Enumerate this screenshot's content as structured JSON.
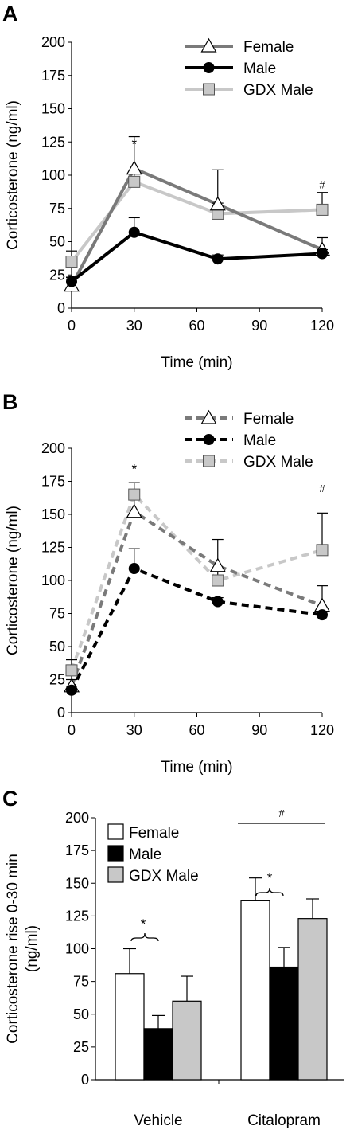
{
  "chart_data": [
    {
      "panel": "A",
      "type": "line",
      "xlabel": "Time (min)",
      "ylabel": "Corticosterone (ng/ml)",
      "x": [
        0,
        30,
        70,
        120
      ],
      "xticks": [
        0,
        30,
        60,
        90,
        120
      ],
      "xlim": [
        0,
        120
      ],
      "ylim": [
        0,
        200
      ],
      "yticks": [
        0,
        25,
        50,
        75,
        100,
        125,
        150,
        175,
        200
      ],
      "line_style": "solid",
      "legend_position": "top-right",
      "series": [
        {
          "name": "Female",
          "values": [
            17,
            105,
            78,
            44
          ],
          "errors": [
            6,
            24,
            26,
            9
          ],
          "marker": "triangle",
          "color": "#7a7a7a"
        },
        {
          "name": "Male",
          "values": [
            20,
            57,
            37,
            41
          ],
          "errors": [
            4,
            11,
            3,
            3
          ],
          "marker": "circle",
          "color": "#000000"
        },
        {
          "name": "GDX Male",
          "values": [
            35,
            95,
            71,
            74
          ],
          "errors": [
            8,
            6,
            8,
            13
          ],
          "marker": "square",
          "color": "#c8c8c8"
        }
      ],
      "annotations": [
        {
          "text": "*",
          "x": 30,
          "y": 120
        },
        {
          "text": "#",
          "x": 120,
          "y": 90
        }
      ]
    },
    {
      "panel": "B",
      "type": "line",
      "xlabel": "Time (min)",
      "ylabel": "Corticosterone (ng/ml)",
      "x": [
        0,
        30,
        70,
        120
      ],
      "xticks": [
        0,
        30,
        60,
        90,
        120
      ],
      "xlim": [
        0,
        120
      ],
      "ylim": [
        0,
        200
      ],
      "yticks": [
        0,
        25,
        50,
        75,
        100,
        125,
        150,
        175,
        200
      ],
      "line_style": "dashed",
      "legend_position": "top-right",
      "series": [
        {
          "name": "Female",
          "values": [
            20,
            152,
            111,
            81
          ],
          "errors": [
            5,
            15,
            20,
            15
          ],
          "marker": "triangle",
          "color": "#7a7a7a"
        },
        {
          "name": "Male",
          "values": [
            17,
            109,
            84,
            74
          ],
          "errors": [
            3,
            15,
            3,
            3
          ],
          "marker": "circle",
          "color": "#000000"
        },
        {
          "name": "GDX Male",
          "values": [
            32,
            165,
            100,
            123
          ],
          "errors": [
            8,
            9,
            8,
            28
          ],
          "marker": "square",
          "color": "#c8c8c8"
        }
      ],
      "annotations": [
        {
          "text": "*",
          "x": 30,
          "y": 181
        },
        {
          "text": "#",
          "x": 120,
          "y": 167
        }
      ]
    },
    {
      "panel": "C",
      "type": "bar",
      "ylabel": "Corticosterone rise 0-30 min (ng/ml)",
      "ylabel_lines": [
        "Corticosterone rise 0-30 min",
        "(ng/ml)"
      ],
      "categories": [
        "Vehicle",
        "Citalopram"
      ],
      "ylim": [
        0,
        200
      ],
      "yticks": [
        0,
        25,
        50,
        75,
        100,
        125,
        150,
        175,
        200
      ],
      "legend_position": "top-left",
      "series": [
        {
          "name": "Female",
          "values": [
            81,
            137
          ],
          "errors": [
            19,
            17
          ],
          "color": "#ffffff"
        },
        {
          "name": "Male",
          "values": [
            39,
            86
          ],
          "errors": [
            10,
            15
          ],
          "color": "#000000"
        },
        {
          "name": "GDX Male",
          "values": [
            60,
            123
          ],
          "errors": [
            19,
            15
          ],
          "color": "#c8c8c8"
        }
      ],
      "annotations": [
        {
          "text": "*",
          "category": "Vehicle"
        },
        {
          "text": "*",
          "category": "Citalopram"
        },
        {
          "text": "#",
          "category": "Citalopram"
        }
      ]
    }
  ]
}
